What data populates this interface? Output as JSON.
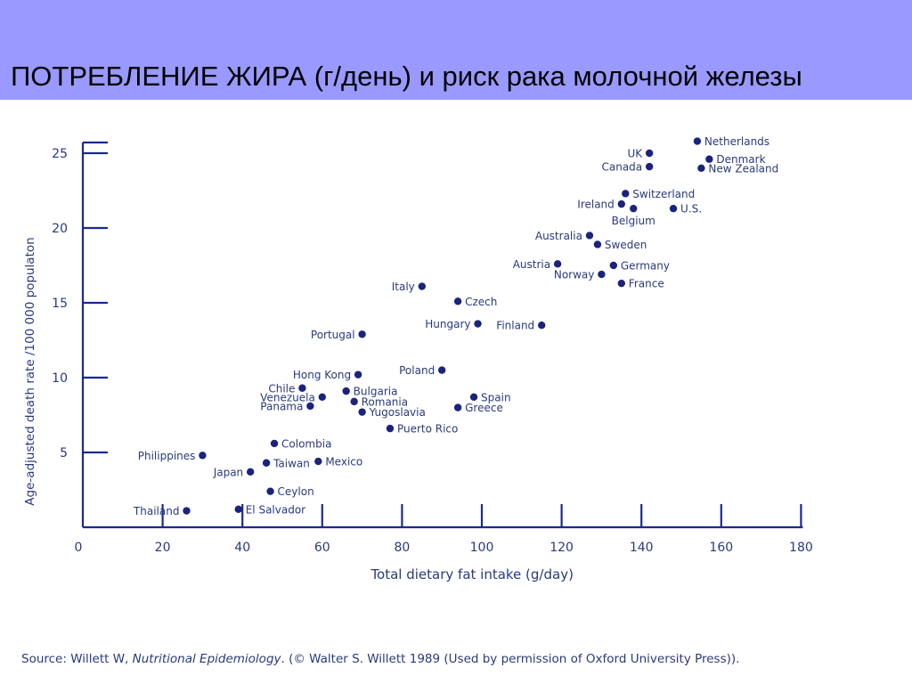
{
  "header": {
    "title": "ПОТРЕБЛЕНИЕ ЖИРА (г/день) и риск рака молочной железы"
  },
  "source": {
    "prefix": "Source: Willett W, ",
    "book": "Nutritional Epidemiology",
    "suffix": ". (© Walter S. Willett 1989 (Used by permission of Oxford University Press))."
  },
  "colors": {
    "header_background": "#9999ff",
    "axis": "#1b2a8f",
    "marker": "#1a237e",
    "text": "#2a3a7a"
  },
  "chart_data": {
    "type": "scatter",
    "xlabel": "Total dietary fat intake (g/day)",
    "ylabel": "Age-adjusted death rate /100 000 populaton",
    "xlim": [
      0,
      180
    ],
    "ylim": [
      0,
      26
    ],
    "xticks": [
      0,
      20,
      40,
      60,
      80,
      100,
      120,
      140,
      160,
      180
    ],
    "yticks": [
      5,
      10,
      15,
      20,
      25
    ],
    "grid": false,
    "points": [
      {
        "label": "Netherlands",
        "x": 154,
        "y": 25.8,
        "label_side": "right"
      },
      {
        "label": "UK",
        "x": 142,
        "y": 25.0,
        "label_side": "left"
      },
      {
        "label": "Canada",
        "x": 142,
        "y": 24.1,
        "label_side": "left"
      },
      {
        "label": "Denmark",
        "x": 157,
        "y": 24.6,
        "label_side": "right"
      },
      {
        "label": "New Zealand",
        "x": 155,
        "y": 24.0,
        "label_side": "right"
      },
      {
        "label": "Switzerland",
        "x": 136,
        "y": 22.3,
        "label_side": "right"
      },
      {
        "label": "Ireland",
        "x": 135,
        "y": 21.6,
        "label_side": "left"
      },
      {
        "label": "Belgium",
        "x": 138,
        "y": 21.3,
        "label_side": "below"
      },
      {
        "label": "U.S.",
        "x": 148,
        "y": 21.3,
        "label_side": "right"
      },
      {
        "label": "Australia",
        "x": 127,
        "y": 19.5,
        "label_side": "left"
      },
      {
        "label": "Sweden",
        "x": 129,
        "y": 18.9,
        "label_side": "right"
      },
      {
        "label": "Austria",
        "x": 119,
        "y": 17.6,
        "label_side": "left"
      },
      {
        "label": "Germany",
        "x": 133,
        "y": 17.5,
        "label_side": "right"
      },
      {
        "label": "Norway",
        "x": 130,
        "y": 16.9,
        "label_side": "left"
      },
      {
        "label": "France",
        "x": 135,
        "y": 16.3,
        "label_side": "right"
      },
      {
        "label": "Italy",
        "x": 85,
        "y": 16.1,
        "label_side": "left"
      },
      {
        "label": "Czech",
        "x": 94,
        "y": 15.1,
        "label_side": "right"
      },
      {
        "label": "Hungary",
        "x": 99,
        "y": 13.6,
        "label_side": "left"
      },
      {
        "label": "Finland",
        "x": 115,
        "y": 13.5,
        "label_side": "left"
      },
      {
        "label": "Portugal",
        "x": 70,
        "y": 12.9,
        "label_side": "left"
      },
      {
        "label": "Poland",
        "x": 90,
        "y": 10.5,
        "label_side": "left"
      },
      {
        "label": "Hong Kong",
        "x": 69,
        "y": 10.2,
        "label_side": "left"
      },
      {
        "label": "Chile",
        "x": 55,
        "y": 9.3,
        "label_side": "left"
      },
      {
        "label": "Bulgaria",
        "x": 66,
        "y": 9.1,
        "label_side": "right"
      },
      {
        "label": "Venezuela",
        "x": 60,
        "y": 8.7,
        "label_side": "left"
      },
      {
        "label": "Romania",
        "x": 68,
        "y": 8.4,
        "label_side": "right"
      },
      {
        "label": "Panama",
        "x": 57,
        "y": 8.1,
        "label_side": "left"
      },
      {
        "label": "Spain",
        "x": 98,
        "y": 8.7,
        "label_side": "right"
      },
      {
        "label": "Greece",
        "x": 94,
        "y": 8.0,
        "label_side": "right"
      },
      {
        "label": "Yugoslavia",
        "x": 70,
        "y": 7.7,
        "label_side": "right"
      },
      {
        "label": "Puerto Rico",
        "x": 77,
        "y": 6.6,
        "label_side": "right"
      },
      {
        "label": "Colombia",
        "x": 48,
        "y": 5.6,
        "label_side": "right"
      },
      {
        "label": "Philippines",
        "x": 30,
        "y": 4.8,
        "label_side": "left"
      },
      {
        "label": "Taiwan",
        "x": 46,
        "y": 4.3,
        "label_side": "right"
      },
      {
        "label": "Mexico",
        "x": 59,
        "y": 4.4,
        "label_side": "right"
      },
      {
        "label": "Japan",
        "x": 42,
        "y": 3.7,
        "label_side": "left"
      },
      {
        "label": "Ceylon",
        "x": 47,
        "y": 2.4,
        "label_side": "right"
      },
      {
        "label": "Thailand",
        "x": 26,
        "y": 1.1,
        "label_side": "left"
      },
      {
        "label": "El Salvador",
        "x": 39,
        "y": 1.2,
        "label_side": "right"
      }
    ]
  }
}
